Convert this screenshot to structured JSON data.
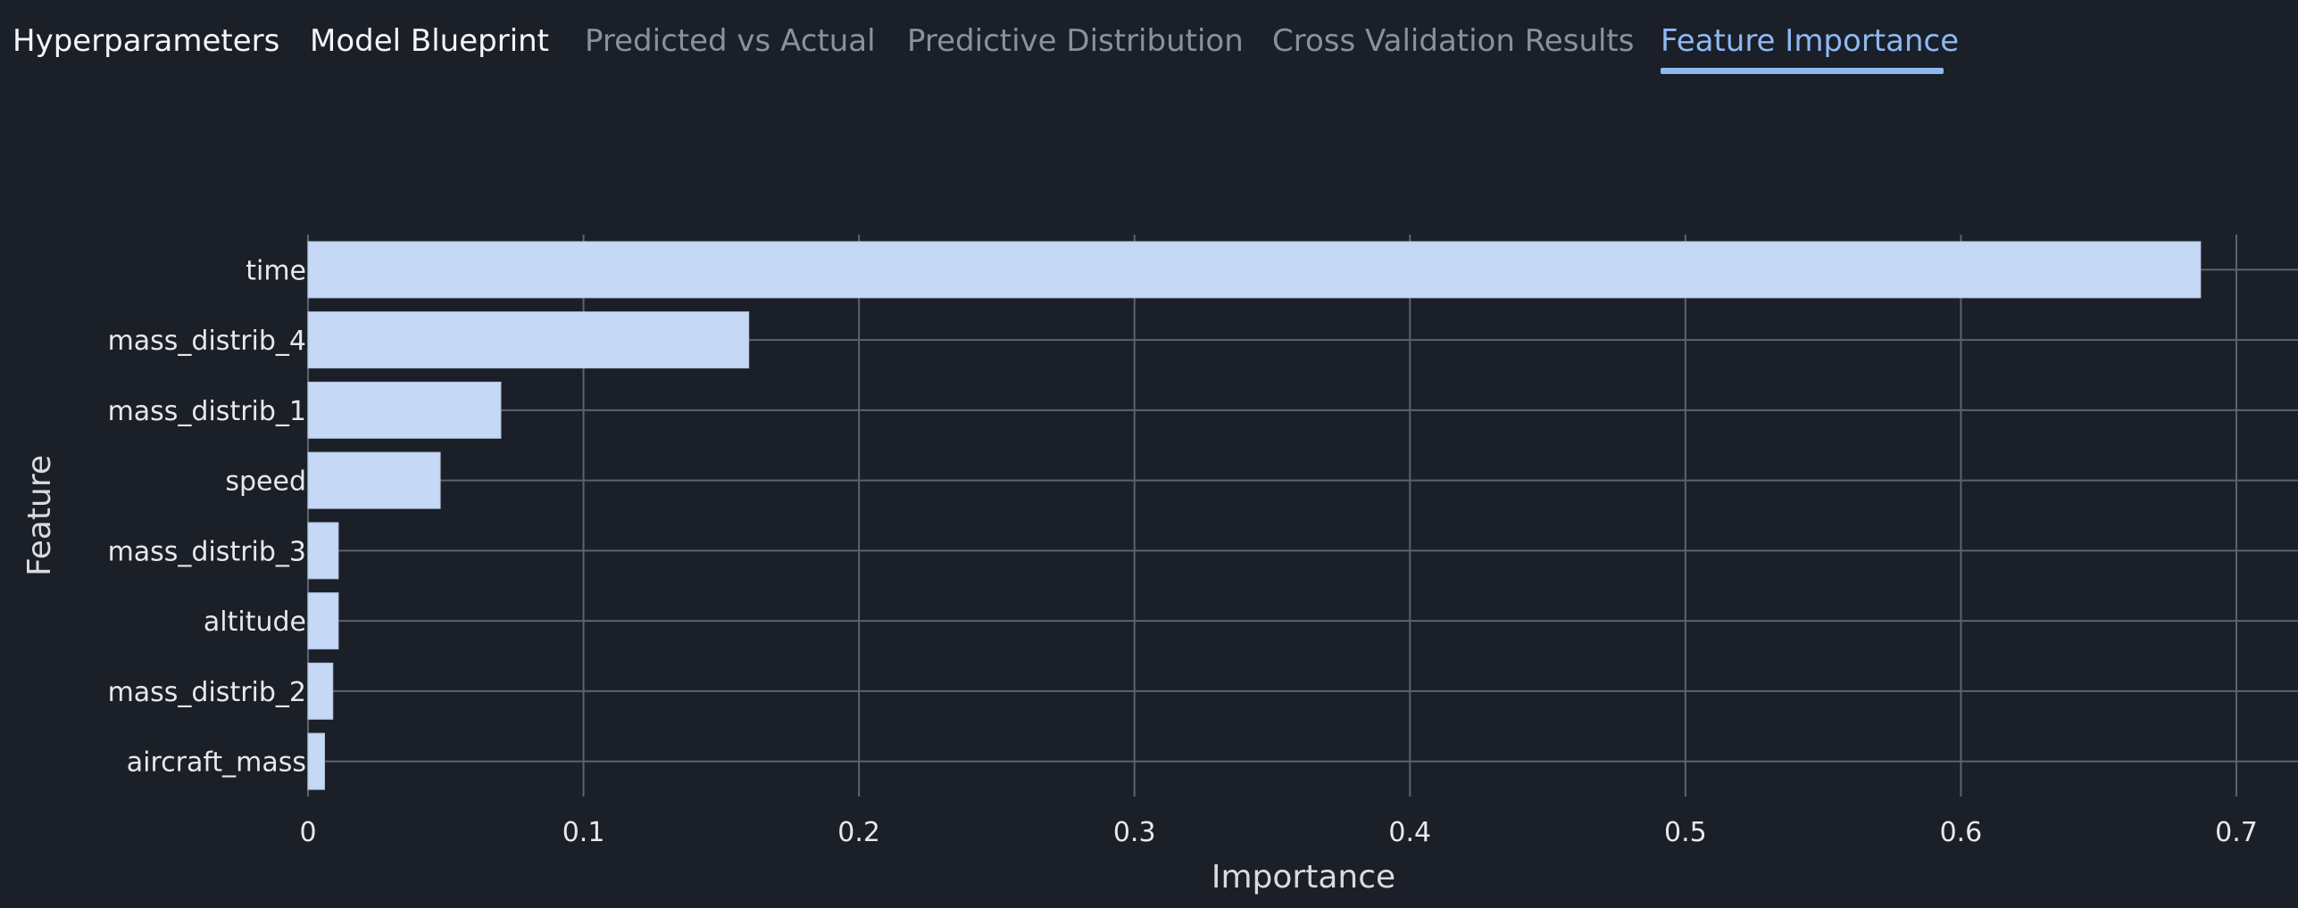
{
  "tabs": [
    {
      "label": "Hyperparameters",
      "state": "normal"
    },
    {
      "label": "Model Blueprint",
      "state": "normal"
    },
    {
      "label": "Predicted vs Actual",
      "state": "dim"
    },
    {
      "label": "Predictive Distribution",
      "state": "dim"
    },
    {
      "label": "Cross Validation Results",
      "state": "dim"
    },
    {
      "label": "Feature Importance",
      "state": "active"
    }
  ],
  "colors": {
    "background": "#1a1f28",
    "bar": "#c5d9f6",
    "grid": "#5d636c",
    "active_tab": "#8fb8f2",
    "text": "#e6e8ec",
    "dim_text": "#8b919b"
  },
  "chart_data": {
    "type": "bar",
    "orientation": "horizontal",
    "categories": [
      "time",
      "mass_distrib_4",
      "mass_distrib_1",
      "speed",
      "mass_distrib_3",
      "altitude",
      "mass_distrib_2",
      "aircraft_mass"
    ],
    "values": [
      0.687,
      0.16,
      0.07,
      0.048,
      0.011,
      0.011,
      0.009,
      0.006
    ],
    "xlabel": "Importance",
    "ylabel": "Feature",
    "xlim": [
      0,
      0.7
    ],
    "xticks": [
      0,
      0.1,
      0.2,
      0.3,
      0.4,
      0.5,
      0.6,
      0.7
    ],
    "xtick_labels": [
      "0",
      "0.1",
      "0.2",
      "0.3",
      "0.4",
      "0.5",
      "0.6",
      "0.7"
    ],
    "grid": true
  }
}
